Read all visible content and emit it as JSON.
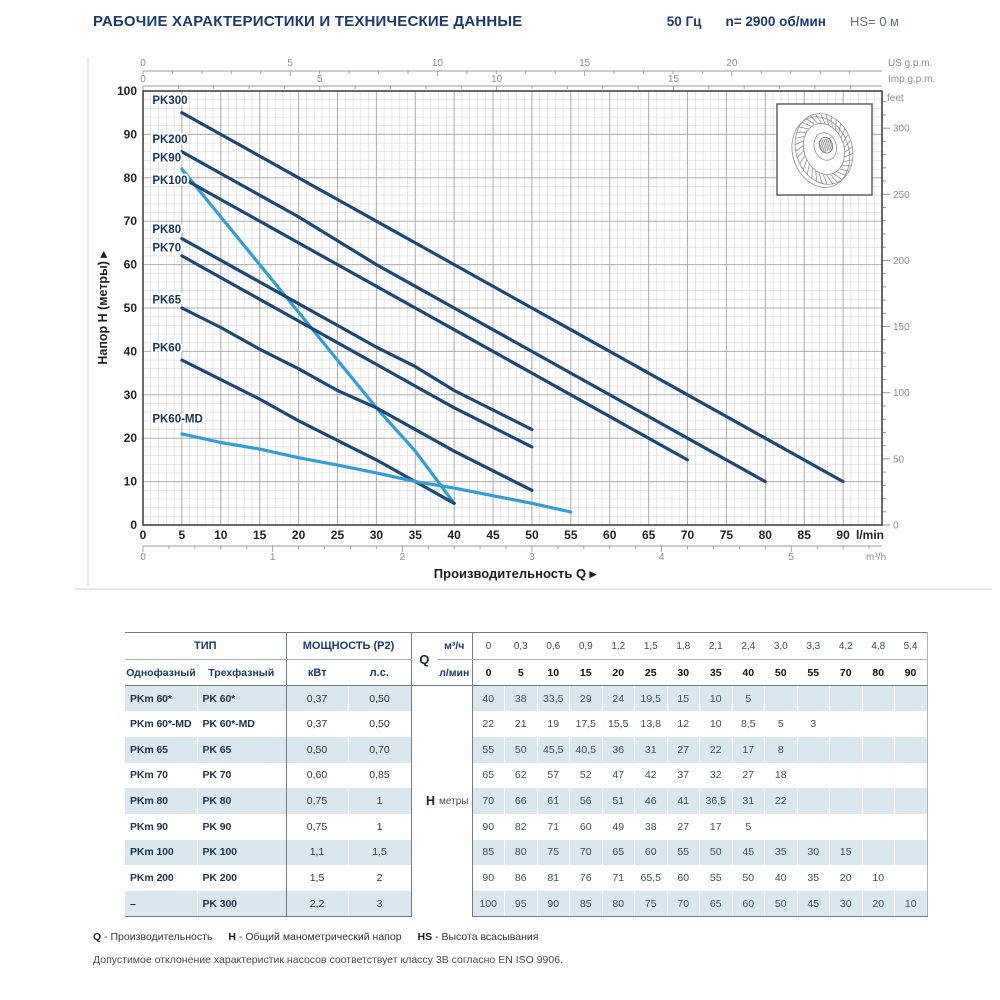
{
  "colors": {
    "navy": "#1a3a70",
    "curve_dark": "#1c4878",
    "curve_light": "#2f9ed9",
    "grid_minor": "#dcdcdc",
    "grid_major": "#ababab",
    "frame": "#444444",
    "axis_secondary_text": "#8d8d8d",
    "axis_primary_text": "#222222",
    "row_shade": "#dbe7ee"
  },
  "header": {
    "title": "РАБОЧИЕ ХАРАКТЕРИСТИКИ И ТЕХНИЧЕСКИЕ ДАННЫЕ",
    "frequency": "50 Гц",
    "speed": "n= 2900 об/мин",
    "suction_head": "HS= 0 м"
  },
  "chart_data": {
    "type": "line",
    "title": "",
    "xlabel": "Производительность Q  ▸",
    "ylabel": "Напор H (метры)  ▸",
    "x_unit": "l/min",
    "grid": true,
    "legend_position": "inline-labels",
    "xlim": [
      0,
      95
    ],
    "ylim": [
      0,
      100
    ],
    "x_ticks": [
      0,
      5,
      10,
      15,
      20,
      25,
      30,
      35,
      40,
      45,
      50,
      55,
      60,
      65,
      70,
      75,
      80,
      85,
      90
    ],
    "y_ticks": [
      0,
      10,
      20,
      30,
      40,
      50,
      60,
      70,
      80,
      90,
      100
    ],
    "secondary_axes": {
      "us_gpm": {
        "label": "US g.p.m.",
        "ticks": [
          0,
          5,
          10,
          15,
          20
        ],
        "lmin_per_unit": 3.785,
        "minor_step": 1,
        "max": 24
      },
      "imp_gpm": {
        "label": "Imp g.p.m.",
        "ticks": [
          0,
          5,
          10,
          15
        ],
        "lmin_per_unit": 4.546,
        "minor_step": 1,
        "max": 20
      },
      "m3h": {
        "label": "m³/h",
        "ticks": [
          0,
          1,
          2,
          3,
          4,
          5
        ],
        "lmin_per_unit": 16.667,
        "minor_step": 0.2,
        "max": 5.6
      },
      "feet": {
        "label": "feet",
        "ticks": [
          0,
          50,
          100,
          150,
          200,
          250,
          300
        ],
        "m_per_unit": 0.3048,
        "minor_step": 10,
        "max": 320
      }
    },
    "series": [
      {
        "name": "PK300",
        "color": "#1c4878",
        "label_pos": [
          1.2,
          97
        ],
        "points": [
          [
            5,
            95
          ],
          [
            10,
            90
          ],
          [
            15,
            85
          ],
          [
            20,
            80
          ],
          [
            25,
            75
          ],
          [
            30,
            70
          ],
          [
            35,
            65
          ],
          [
            40,
            60
          ],
          [
            50,
            50
          ],
          [
            55,
            45
          ],
          [
            70,
            30
          ],
          [
            80,
            20
          ],
          [
            90,
            10
          ]
        ]
      },
      {
        "name": "PK200",
        "color": "#1c4878",
        "label_pos": [
          1.2,
          88
        ],
        "points": [
          [
            5,
            86
          ],
          [
            10,
            81
          ],
          [
            15,
            76
          ],
          [
            20,
            71
          ],
          [
            25,
            65.5
          ],
          [
            30,
            60
          ],
          [
            35,
            55
          ],
          [
            40,
            50
          ],
          [
            50,
            40
          ],
          [
            55,
            35
          ],
          [
            70,
            20
          ],
          [
            80,
            10
          ]
        ]
      },
      {
        "name": "PK90",
        "color": "#2f9ed9",
        "label_pos": [
          1.2,
          83.7
        ],
        "points": [
          [
            5,
            82
          ],
          [
            10,
            71
          ],
          [
            15,
            60
          ],
          [
            20,
            49
          ],
          [
            25,
            38
          ],
          [
            30,
            27
          ],
          [
            35,
            17
          ],
          [
            40,
            5
          ]
        ]
      },
      {
        "name": "PK100",
        "color": "#1c4878",
        "label_pos": [
          1.2,
          78.6
        ],
        "points": [
          [
            5,
            80
          ],
          [
            10,
            75
          ],
          [
            15,
            70
          ],
          [
            20,
            65
          ],
          [
            25,
            60
          ],
          [
            30,
            55
          ],
          [
            35,
            50
          ],
          [
            40,
            45
          ],
          [
            50,
            35
          ],
          [
            55,
            30
          ],
          [
            70,
            15
          ]
        ]
      },
      {
        "name": "PK80",
        "color": "#1c4878",
        "label_pos": [
          1.2,
          67.3
        ],
        "points": [
          [
            5,
            66
          ],
          [
            10,
            61
          ],
          [
            15,
            56
          ],
          [
            20,
            51
          ],
          [
            25,
            46
          ],
          [
            30,
            41
          ],
          [
            35,
            36.5
          ],
          [
            40,
            31
          ],
          [
            50,
            22
          ]
        ]
      },
      {
        "name": "PK70",
        "color": "#1c4878",
        "label_pos": [
          1.2,
          63
        ],
        "points": [
          [
            5,
            62
          ],
          [
            10,
            57
          ],
          [
            15,
            52
          ],
          [
            20,
            47
          ],
          [
            25,
            42
          ],
          [
            30,
            37
          ],
          [
            35,
            32
          ],
          [
            40,
            27
          ],
          [
            50,
            18
          ]
        ]
      },
      {
        "name": "PK65",
        "color": "#1c4878",
        "label_pos": [
          1.2,
          51
        ],
        "points": [
          [
            5,
            50
          ],
          [
            10,
            45.5
          ],
          [
            15,
            40.5
          ],
          [
            20,
            36
          ],
          [
            25,
            31
          ],
          [
            30,
            27
          ],
          [
            35,
            22
          ],
          [
            40,
            17
          ],
          [
            50,
            8
          ]
        ]
      },
      {
        "name": "PK60",
        "color": "#1c4878",
        "label_pos": [
          1.2,
          40
        ],
        "points": [
          [
            5,
            38
          ],
          [
            10,
            33.5
          ],
          [
            15,
            29
          ],
          [
            20,
            24
          ],
          [
            25,
            19.5
          ],
          [
            30,
            15
          ],
          [
            35,
            10
          ],
          [
            40,
            5
          ]
        ]
      },
      {
        "name": "PK60-MD",
        "color": "#2f9ed9",
        "label_pos": [
          1.2,
          23.6
        ],
        "points": [
          [
            5,
            21
          ],
          [
            10,
            19
          ],
          [
            15,
            17.5
          ],
          [
            20,
            15.5
          ],
          [
            25,
            13.8
          ],
          [
            30,
            12
          ],
          [
            35,
            10
          ],
          [
            40,
            8.5
          ],
          [
            50,
            5
          ],
          [
            55,
            3
          ]
        ]
      }
    ]
  },
  "table": {
    "type_header": "ТИП",
    "power_header": "МОЩНОСТЬ (P2)",
    "col_single": "Однофазный",
    "col_three": "Трехфазный",
    "col_kw": "кВт",
    "col_hp": "л.с.",
    "q_label": "Q",
    "h_label": "H",
    "h_unit": "метры",
    "flow_rows": [
      {
        "unit": "м³/ч",
        "values": [
          "0",
          "0,3",
          "0,6",
          "0,9",
          "1,2",
          "1,5",
          "1,8",
          "2,1",
          "2,4",
          "3,0",
          "3,3",
          "4,2",
          "4,8",
          "5,4"
        ]
      },
      {
        "unit": "л/мин",
        "values": [
          "0",
          "5",
          "10",
          "15",
          "20",
          "25",
          "30",
          "35",
          "40",
          "50",
          "55",
          "70",
          "80",
          "90"
        ]
      }
    ],
    "rows": [
      {
        "single": "PKm 60*",
        "three": "PK 60*",
        "kw": "0,37",
        "hp": "0,50",
        "head": [
          "40",
          "38",
          "33,5",
          "29",
          "24",
          "19,5",
          "15",
          "10",
          "5",
          "",
          "",
          "",
          "",
          ""
        ]
      },
      {
        "single": "PKm 60*-MD",
        "three": "PK 60*-MD",
        "kw": "0,37",
        "hp": "0,50",
        "head": [
          "22",
          "21",
          "19",
          "17,5",
          "15,5",
          "13,8",
          "12",
          "10",
          "8,5",
          "5",
          "3",
          "",
          "",
          ""
        ]
      },
      {
        "single": "PKm 65",
        "three": "PK 65",
        "kw": "0,50",
        "hp": "0,70",
        "head": [
          "55",
          "50",
          "45,5",
          "40,5",
          "36",
          "31",
          "27",
          "22",
          "17",
          "8",
          "",
          "",
          "",
          ""
        ]
      },
      {
        "single": "PKm 70",
        "three": "PK 70",
        "kw": "0,60",
        "hp": "0,85",
        "head": [
          "65",
          "62",
          "57",
          "52",
          "47",
          "42",
          "37",
          "32",
          "27",
          "18",
          "",
          "",
          "",
          ""
        ]
      },
      {
        "single": "PKm 80",
        "three": "PK 80",
        "kw": "0,75",
        "hp": "1",
        "head": [
          "70",
          "66",
          "61",
          "56",
          "51",
          "46",
          "41",
          "36,5",
          "31",
          "22",
          "",
          "",
          "",
          ""
        ]
      },
      {
        "single": "PKm 90",
        "three": "PK 90",
        "kw": "0,75",
        "hp": "1",
        "head": [
          "90",
          "82",
          "71",
          "60",
          "49",
          "38",
          "27",
          "17",
          "5",
          "",
          "",
          "",
          "",
          ""
        ]
      },
      {
        "single": "PKm 100",
        "three": "PK 100",
        "kw": "1,1",
        "hp": "1,5",
        "head": [
          "85",
          "80",
          "75",
          "70",
          "65",
          "60",
          "55",
          "50",
          "45",
          "35",
          "30",
          "15",
          "",
          ""
        ]
      },
      {
        "single": "PKm 200",
        "three": "PK 200",
        "kw": "1,5",
        "hp": "2",
        "head": [
          "90",
          "86",
          "81",
          "76",
          "71",
          "65,5",
          "60",
          "55",
          "50",
          "40",
          "35",
          "20",
          "10",
          ""
        ]
      },
      {
        "single": "–",
        "three": "PK 300",
        "kw": "2,2",
        "hp": "3",
        "head": [
          "100",
          "95",
          "90",
          "85",
          "80",
          "75",
          "70",
          "65",
          "60",
          "50",
          "45",
          "30",
          "20",
          "10"
        ]
      }
    ]
  },
  "footer": {
    "legend": [
      {
        "bold": "Q",
        "text": " - Производительность"
      },
      {
        "bold": "H",
        "text": " - Общий манометрический напор"
      },
      {
        "bold": "HS",
        "text": " - Высота всасывания"
      }
    ],
    "note": "Допустимое отклонение характеристик насосов соответствует классу 3В согласно EN ISO 9906."
  }
}
